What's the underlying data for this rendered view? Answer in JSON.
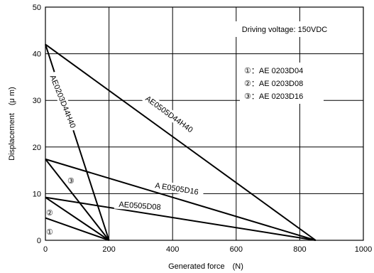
{
  "chart_data": {
    "type": "line",
    "xlabel": "Generated force　(N)",
    "ylabel": "Displacement　(μ m)",
    "xlim": [
      0,
      1000
    ],
    "ylim": [
      0,
      50
    ],
    "x_ticks": [
      0,
      200,
      400,
      600,
      800,
      1000
    ],
    "y_ticks": [
      0,
      10,
      20,
      30,
      40,
      50
    ],
    "grid": true,
    "series": [
      {
        "name": "AE0203D44H40",
        "x": [
          0,
          200
        ],
        "y": [
          42,
          0
        ]
      },
      {
        "name": "AE0505D44H40",
        "x": [
          0,
          850
        ],
        "y": [
          42,
          0
        ]
      },
      {
        "name": "A E0505D16",
        "x": [
          0,
          850
        ],
        "y": [
          17.4,
          0
        ]
      },
      {
        "name": "AE0505D08",
        "x": [
          0,
          850
        ],
        "y": [
          9.2,
          0
        ]
      },
      {
        "name": "③",
        "x": [
          0,
          200
        ],
        "y": [
          17.4,
          0
        ]
      },
      {
        "name": "②",
        "x": [
          0,
          200
        ],
        "y": [
          9.2,
          0
        ]
      },
      {
        "name": "①",
        "x": [
          0,
          200
        ],
        "y": [
          4.8,
          0
        ]
      }
    ],
    "voltage_note": "Driving voltage: 150VDC",
    "legend": [
      "①：AE 0203D04",
      "②：AE 0203D08",
      "③：AE 0203D16"
    ],
    "line_color": "#000000",
    "grid_color": "#000000"
  }
}
